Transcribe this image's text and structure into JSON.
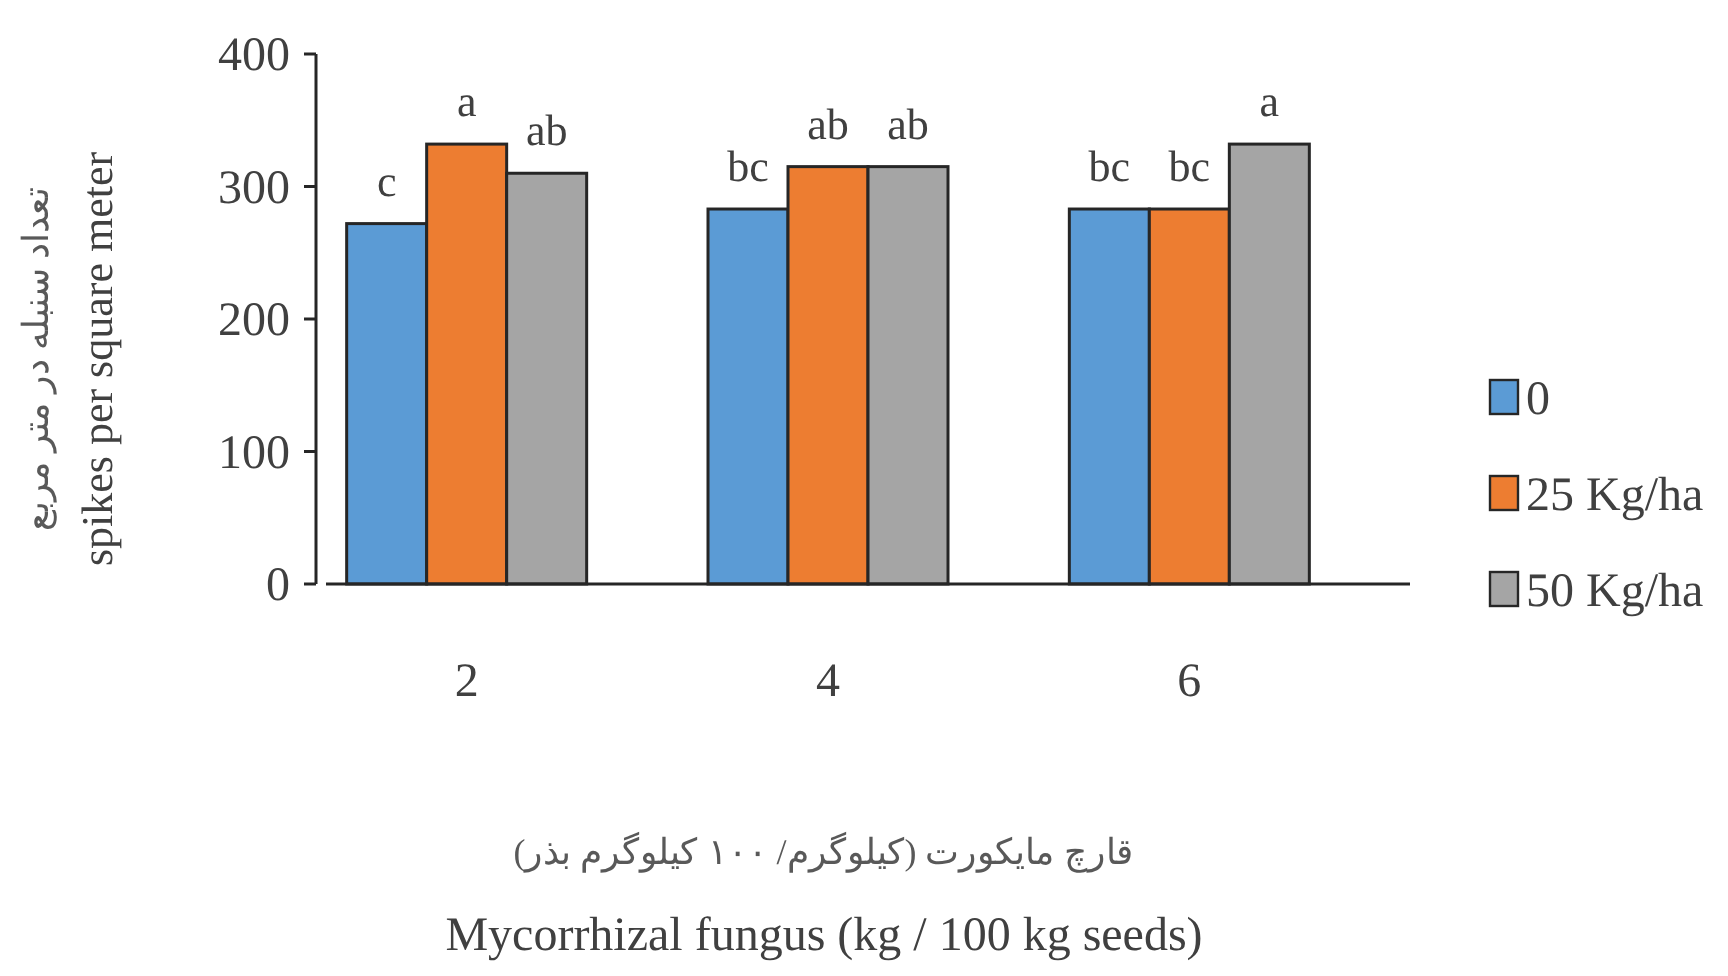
{
  "chart_data": {
    "type": "bar",
    "xlabel": "قارچ مایکورت  (کیلوگرم/ ۱۰۰ کیلوگرم بذر)\nMycorrhizal fungus (kg / 100 kg seeds)",
    "ylabel": "تعداد سنبله در متر مربع\nspikes per square meter",
    "categories": [
      "2",
      "4",
      "6"
    ],
    "series": [
      {
        "name": "0",
        "color": "#5b9bd5",
        "values": [
          272,
          283,
          283
        ]
      },
      {
        "name": "25 Kg/ha",
        "color": "#ed7d31",
        "values": [
          332,
          315,
          283
        ]
      },
      {
        "name": "50 Kg/ha",
        "color": "#a5a5a5",
        "values": [
          310,
          315,
          332
        ]
      }
    ],
    "ylim": [
      0,
      400
    ],
    "yticks": [
      0,
      100,
      200,
      300,
      400
    ],
    "grid": false,
    "legend": "right",
    "annotations": [
      "c",
      "a",
      "ab",
      "bc",
      "ab",
      "ab",
      "bc",
      "bc",
      "a"
    ]
  }
}
